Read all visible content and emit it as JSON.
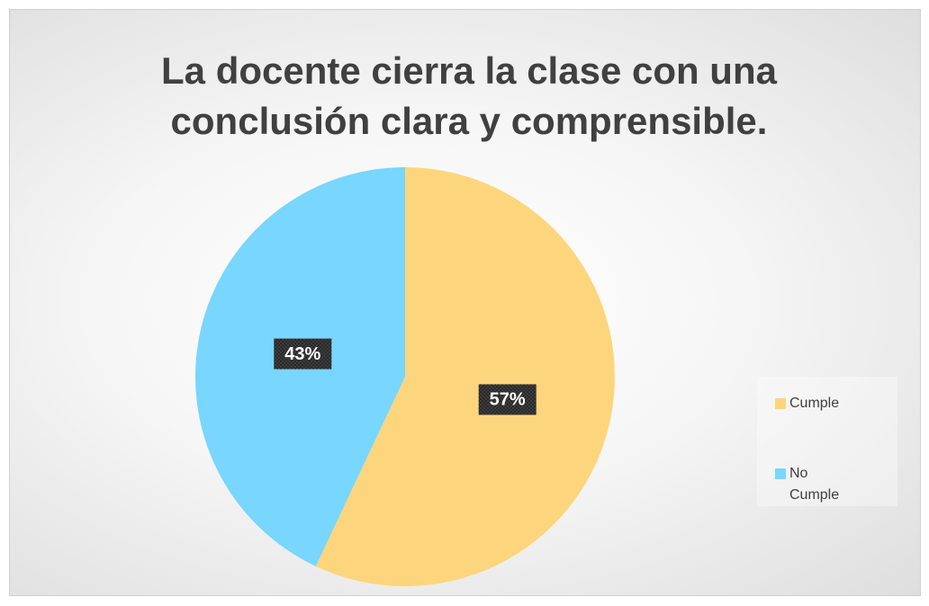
{
  "chart_data": {
    "type": "pie",
    "title": "La docente cierra la clase con una conclusión clara y comprensible.",
    "categories": [
      "Cumple",
      "No Cumple"
    ],
    "values": [
      57,
      43
    ],
    "value_labels": [
      "57%",
      "43%"
    ],
    "colors": [
      "#fdd57c",
      "#78d6ff"
    ],
    "legend": "right"
  }
}
